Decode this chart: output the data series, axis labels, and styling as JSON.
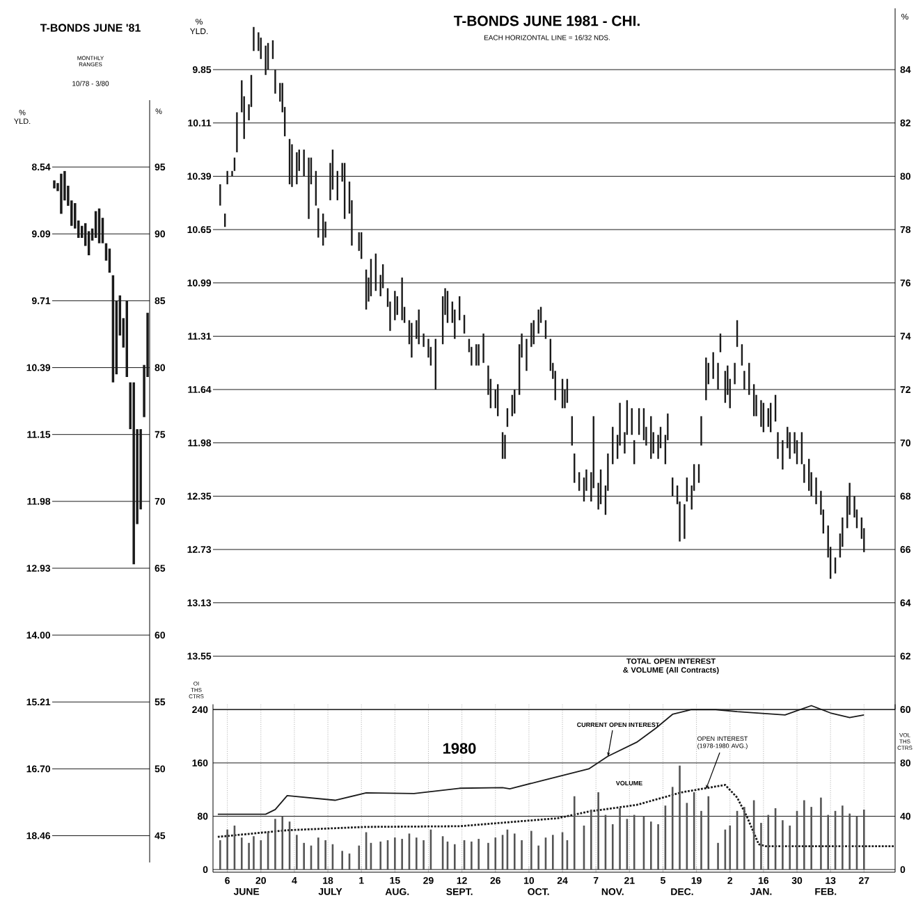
{
  "chart_data": [
    {
      "type": "bar",
      "title": "T-BONDS JUNE '81",
      "subtitle": "MONTHLY RANGES",
      "annotations": [
        "10/78 - 3/80",
        "% YLD.",
        "8.54",
        "9.09",
        "9.71",
        "10.39",
        "11.15",
        "11.98",
        "12.93",
        "14.00",
        "15.21",
        "16.70",
        "18.46"
      ],
      "ylabel": "%",
      "categories": [
        null,
        null,
        null,
        null,
        null,
        null,
        null,
        null,
        null,
        null,
        null,
        null,
        null,
        null,
        null,
        null,
        null,
        null,
        null,
        null,
        null,
        null,
        null,
        null,
        null,
        null,
        null,
        null
      ],
      "base": [
        93.4,
        93.2,
        91.5,
        92.5,
        92.1,
        90.6,
        90.4,
        89.7,
        89.7,
        89.1,
        88.4,
        89.5,
        89.7,
        89.3,
        89.3,
        88.0,
        87.1,
        78.9,
        79.5,
        82.4,
        81.5,
        79.3,
        75.4,
        65.3,
        68.3,
        69.4,
        76.3,
        79.3
      ],
      "values": [
        0.6,
        0.6,
        3.0,
        2.2,
        1.5,
        1.9,
        1.9,
        1.3,
        0.9,
        1.7,
        1.8,
        0.9,
        2.0,
        2.6,
        1.9,
        1.3,
        1.8,
        8.0,
        5.5,
        3.0,
        2.2,
        5.7,
        3.5,
        13.6,
        7.1,
        6.0,
        3.9,
        4.8
      ],
      "color": "#1a1a1a",
      "ylim": [
        43,
        100
      ],
      "yticks": [
        95,
        90,
        85,
        80,
        75,
        70,
        65,
        60,
        55,
        50,
        45
      ],
      "grid": "y"
    },
    {
      "type": "bar",
      "title": "T-BONDS JUNE 1981 - CHI.",
      "subtitle": "EACH HORIZONTAL LINE = 16/32 NDS.",
      "annotations": [
        "% YLD.",
        "9.85",
        "10.11",
        "10.39",
        "10.65",
        "10.99",
        "11.31",
        "11.64",
        "11.98",
        "12.35",
        "12.73",
        "13.13",
        "13.55"
      ],
      "ylabel": "%",
      "x": [
        "1980-06-03",
        "1980-06-05",
        "1980-06-06",
        "1980-06-08",
        "1980-06-09",
        "1980-06-10",
        "1980-06-12",
        "1980-06-13",
        "1980-06-15",
        "1980-06-16",
        "1980-06-17",
        "1980-06-19",
        "1980-06-20",
        "1980-06-22",
        "1980-06-23",
        "1980-06-25",
        "1980-06-26",
        "1980-06-28",
        "1980-06-29",
        "1980-06-30",
        "1980-07-02",
        "1980-07-03",
        "1980-07-05",
        "1980-07-06",
        "1980-07-08",
        "1980-07-10",
        "1980-07-11",
        "1980-07-13",
        "1980-07-14",
        "1980-07-16",
        "1980-07-17",
        "1980-07-19",
        "1980-07-20",
        "1980-07-22",
        "1980-07-24",
        "1980-07-25",
        "1980-07-27",
        "1980-07-28",
        "1980-07-31",
        "1980-08-01",
        "1980-08-03",
        "1980-08-04",
        "1980-08-05",
        "1980-08-07",
        "1980-08-09",
        "1980-08-10",
        "1980-08-12",
        "1980-08-13",
        "1980-08-15",
        "1980-08-16",
        "1980-08-18",
        "1980-08-19",
        "1980-08-21",
        "1980-08-22",
        "1980-08-24",
        "1980-08-25",
        "1980-08-27",
        "1980-08-29",
        "1980-08-30",
        "1980-09-01",
        "1980-09-04",
        "1980-09-05",
        "1980-09-06",
        "1980-09-08",
        "1980-09-09",
        "1980-09-11",
        "1980-09-13",
        "1980-09-15",
        "1980-09-16",
        "1980-09-18",
        "1980-09-19",
        "1980-09-21",
        "1980-09-23",
        "1980-09-24",
        "1980-09-26",
        "1980-09-27",
        "1980-09-29",
        "1980-09-30",
        "1980-10-01",
        "1980-10-03",
        "1980-10-04",
        "1980-10-06",
        "1980-10-07",
        "1980-10-09",
        "1980-10-11",
        "1980-10-12",
        "1980-10-14",
        "1980-10-15",
        "1980-10-17",
        "1980-10-19",
        "1980-10-20",
        "1980-10-21",
        "1980-10-24",
        "1980-10-25",
        "1980-10-26",
        "1980-10-28",
        "1980-10-29",
        "1980-10-31",
        "1980-11-02",
        "1980-11-03",
        "1980-11-05",
        "1980-11-06",
        "1980-11-08",
        "1980-11-09",
        "1980-11-11",
        "1980-11-12",
        "1980-11-14",
        "1980-11-16",
        "1980-11-17",
        "1980-11-19",
        "1980-11-20",
        "1980-11-22",
        "1980-11-23",
        "1980-11-25",
        "1980-11-27",
        "1980-11-28",
        "1980-11-30",
        "1980-12-01",
        "1980-12-03",
        "1980-12-04",
        "1980-12-06",
        "1980-12-07",
        "1980-12-09",
        "1980-12-11",
        "1980-12-12",
        "1980-12-14",
        "1980-12-15",
        "1980-12-17",
        "1980-12-18",
        "1980-12-20",
        "1980-12-21",
        "1980-12-23",
        "1980-12-24",
        "1980-12-26",
        "1980-12-28",
        "1980-12-29",
        "1980-12-31",
        "1981-01-01",
        "1981-01-02",
        "1981-01-04",
        "1981-01-05",
        "1981-01-07",
        "1981-01-08",
        "1981-01-10",
        "1981-01-12",
        "1981-01-13",
        "1981-01-15",
        "1981-01-16",
        "1981-01-18",
        "1981-01-19",
        "1981-01-21",
        "1981-01-22",
        "1981-01-24",
        "1981-01-26",
        "1981-01-27",
        "1981-01-29",
        "1981-01-30",
        "1981-02-01",
        "1981-02-02",
        "1981-02-04",
        "1981-02-05",
        "1981-02-07",
        "1981-02-09",
        "1981-02-10",
        "1981-02-12",
        "1981-02-13",
        "1981-02-15",
        "1981-02-17",
        "1981-02-18",
        "1981-02-20",
        "1981-02-21",
        "1981-02-23",
        "1981-02-24",
        "1981-02-26",
        "1981-02-27"
      ],
      "base": [
        78.9,
        78.1,
        79.7,
        80.0,
        80.2,
        80.9,
        82.4,
        81.4,
        82.1,
        82.6,
        84.7,
        84.7,
        84.4,
        83.8,
        84.0,
        84.4,
        83.1,
        82.8,
        82.4,
        81.5,
        79.7,
        79.6,
        79.7,
        80.2,
        80.0,
        78.4,
        79.7,
        78.9,
        77.7,
        77.4,
        77.7,
        79.1,
        79.5,
        79.1,
        79.8,
        78.4,
        78.6,
        77.4,
        77.2,
        76.9,
        75.0,
        75.3,
        75.5,
        75.7,
        75.5,
        75.8,
        75.1,
        74.2,
        74.6,
        74.8,
        74.6,
        74.5,
        73.7,
        73.2,
        73.9,
        73.7,
        73.6,
        73.2,
        72.9,
        72.0,
        73.7,
        74.8,
        74.5,
        74.5,
        73.9,
        74.6,
        74.1,
        73.4,
        72.9,
        72.9,
        72.9,
        73.0,
        71.8,
        71.3,
        71.3,
        71.0,
        69.4,
        69.4,
        70.6,
        71.0,
        71.1,
        71.8,
        73.2,
        72.7,
        73.6,
        73.7,
        74.1,
        74.5,
        73.9,
        72.7,
        72.4,
        71.6,
        71.3,
        71.3,
        71.5,
        69.9,
        68.5,
        68.2,
        67.8,
        68.2,
        67.8,
        68.3,
        67.5,
        67.7,
        67.3,
        68.2,
        69.2,
        69.4,
        69.9,
        69.6,
        70.3,
        70.3,
        69.2,
        70.3,
        70.1,
        69.9,
        69.4,
        69.6,
        69.4,
        69.8,
        69.2,
        70.1,
        68.0,
        67.7,
        66.3,
        66.4,
        67.8,
        67.5,
        68.2,
        68.5,
        69.9,
        71.6,
        72.2,
        72.4,
        72.0,
        73.4,
        71.5,
        71.8,
        71.3,
        72.2,
        73.6,
        72.9,
        72.0,
        71.8,
        71.0,
        71.0,
        70.6,
        70.4,
        70.6,
        70.4,
        70.8,
        69.4,
        69.0,
        69.8,
        69.4,
        69.6,
        69.2,
        69.2,
        68.5,
        68.2,
        68.0,
        67.7,
        67.3,
        66.6,
        65.7,
        64.9,
        65.1,
        65.7,
        66.1,
        66.8,
        67.3,
        67.2,
        66.8,
        66.4,
        65.9
      ],
      "values": [
        0.8,
        0.5,
        0.5,
        0.2,
        0.5,
        1.5,
        1.2,
        1.6,
        0.6,
        1.2,
        0.9,
        0.7,
        0.8,
        1.1,
        1.0,
        0.7,
        0.9,
        0.7,
        1.1,
        1.1,
        1.7,
        1.6,
        1.2,
        0.8,
        1.0,
        2.3,
        1.0,
        1.3,
        1.1,
        1.2,
        0.6,
        1.4,
        1.5,
        1.1,
        0.7,
        2.1,
        1.2,
        1.7,
        0.7,
        1.0,
        1.5,
        0.9,
        1.4,
        1.4,
        0.8,
        0.9,
        0.7,
        1.1,
        1.1,
        0.7,
        1.6,
        0.6,
        0.9,
        1.3,
        0.7,
        1.3,
        0.5,
        0.7,
        0.7,
        1.9,
        1.8,
        1.0,
        1.2,
        0.8,
        1.1,
        0.9,
        0.7,
        0.5,
        0.7,
        0.8,
        0.8,
        1.1,
        1.1,
        1.1,
        0.7,
        1.2,
        1.0,
        0.9,
        0.7,
        0.8,
        0.9,
        1.9,
        0.9,
        1.2,
        0.9,
        0.9,
        0.9,
        0.6,
        0.7,
        1.2,
        0.6,
        1.1,
        1.1,
        0.7,
        0.9,
        1.1,
        1.1,
        0.7,
        0.9,
        0.8,
        1.1,
        2.7,
        1.0,
        1.3,
        1.1,
        1.4,
        1.4,
        0.9,
        1.6,
        0.8,
        1.3,
        1.0,
        0.9,
        1.0,
        1.2,
        0.7,
        1.6,
        0.8,
        0.9,
        0.8,
        1.1,
        1.0,
        0.7,
        0.7,
        1.5,
        1.3,
        0.9,
        0.9,
        1.0,
        0.7,
        1.1,
        1.6,
        0.8,
        1.0,
        1.0,
        0.7,
        1.2,
        1.1,
        1.1,
        0.8,
        1.0,
        0.8,
        0.7,
        1.2,
        1.2,
        0.8,
        1.0,
        1.1,
        0.7,
        1.1,
        1.0,
        1.0,
        1.1,
        0.8,
        1.0,
        0.8,
        0.9,
        1.2,
        0.7,
        1.2,
        0.9,
        1.0,
        0.9,
        0.9,
        1.2,
        1.2,
        0.6,
        0.9,
        1.1,
        1.2,
        1.2,
        0.8,
        0.7,
        0.8,
        0.9
      ],
      "color": "#1a1a1a",
      "xlim": [
        "1980-05-31",
        "1981-03-12"
      ],
      "xticks": [
        {
          "value": "1980-06-06",
          "label": null
        },
        {
          "value": "1980-06-20",
          "label": null
        },
        {
          "value": "1980-07-04",
          "label": null
        },
        {
          "value": "1980-07-18",
          "label": null
        },
        {
          "value": "1980-08-01",
          "label": null
        },
        {
          "value": "1980-08-15",
          "label": null
        },
        {
          "value": "1980-08-29",
          "label": null
        },
        {
          "value": "1980-09-12",
          "label": null
        },
        {
          "value": "1980-09-26",
          "label": null
        },
        {
          "value": "1980-10-10",
          "label": null
        },
        {
          "value": "1980-10-24",
          "label": null
        },
        {
          "value": "1980-11-07",
          "label": null
        },
        {
          "value": "1980-11-21",
          "label": null
        },
        {
          "value": "1980-12-05",
          "label": null
        },
        {
          "value": "1980-12-19",
          "label": null
        },
        {
          "value": "1981-01-02",
          "label": null
        },
        {
          "value": "1981-01-16",
          "label": null
        },
        {
          "value": "1981-01-30",
          "label": null
        },
        {
          "value": "1981-02-13",
          "label": null
        },
        {
          "value": "1981-02-27",
          "label": null
        }
      ],
      "ylim": [
        60,
        86.3
      ],
      "yticks": [
        84,
        82,
        80,
        78,
        76,
        74,
        72,
        70,
        68,
        66,
        64,
        62,
        60
      ],
      "grid": true,
      "tick_labels": "y"
    },
    {
      "type": "line",
      "title": "TOTAL OPEN INTEREST & VOLUME (All Contracts)",
      "ylabel": "OI THS CTRS",
      "y2label": "VOL THS CTRS",
      "annotations": [
        "1980",
        {
          "text": "CURRENT OPEN INTEREST",
          "x": "1980-11-12",
          "y": 170
        },
        {
          "text": "OPEN INTEREST (1978-1980 AVG.)",
          "x": "1980-12-23",
          "y": 121
        },
        "VOLUME"
      ],
      "xlim": [
        "1980-05-31",
        "1981-03-12"
      ],
      "xticks": [
        {
          "value": "1980-06-06",
          "label": "6"
        },
        {
          "value": "1980-06-20",
          "label": "20"
        },
        {
          "value": "1980-07-04",
          "label": "4"
        },
        {
          "value": "1980-07-18",
          "label": "18"
        },
        {
          "value": "1980-08-01",
          "label": "1"
        },
        {
          "value": "1980-08-15",
          "label": "15"
        },
        {
          "value": "1980-08-29",
          "label": "29"
        },
        {
          "value": "1980-09-12",
          "label": "12"
        },
        {
          "value": "1980-09-26",
          "label": "26"
        },
        {
          "value": "1980-10-10",
          "label": "10"
        },
        {
          "value": "1980-10-24",
          "label": "24"
        },
        {
          "value": "1980-11-07",
          "label": "7"
        },
        {
          "value": "1980-11-21",
          "label": "21"
        },
        {
          "value": "1980-12-05",
          "label": "5"
        },
        {
          "value": "1980-12-19",
          "label": "19"
        },
        {
          "value": "1981-01-02",
          "label": "2"
        },
        {
          "value": "1981-01-16",
          "label": "16"
        },
        {
          "value": "1981-01-30",
          "label": "30"
        },
        {
          "value": "1981-02-13",
          "label": "13"
        },
        {
          "value": "1981-02-27",
          "label": "27"
        }
      ],
      "x2lim": [
        "1980-05-31",
        "1981-03-12"
      ],
      "x2ticks": [
        {
          "value": "1980-06-14",
          "label": "JUNE"
        },
        {
          "value": "1980-07-19",
          "label": "JULY"
        },
        {
          "value": "1980-08-16",
          "label": "AUG."
        },
        {
          "value": "1980-09-11",
          "label": "SEPT."
        },
        {
          "value": "1980-10-14",
          "label": "OCT."
        },
        {
          "value": "1980-11-14",
          "label": "NOV."
        },
        {
          "value": "1980-12-13",
          "label": "DEC."
        },
        {
          "value": "1981-01-15",
          "label": "JAN."
        },
        {
          "value": "1981-02-11",
          "label": "FEB."
        }
      ],
      "ylim": [
        -4,
        248
      ],
      "yticks": [
        0,
        80,
        160,
        240
      ],
      "y2lim": [
        -2,
        124
      ],
      "y2ticks": [
        0,
        40,
        80
      ],
      "grid": true,
      "series": [
        {
          "type": "line",
          "color": "#1a1a1a",
          "line_style": "solid",
          "x": [
            "1980-06-02",
            "1980-06-22",
            "1980-06-26",
            "1980-07-01",
            "1980-07-21",
            "1980-08-03",
            "1980-08-23",
            "1980-09-11",
            "1980-09-29",
            "1980-10-02",
            "1980-10-16",
            "1980-11-04",
            "1980-11-12",
            "1980-11-24",
            "1980-12-02",
            "1980-12-09",
            "1980-12-17",
            "1980-12-27",
            "1981-01-05",
            "1981-01-25",
            "1981-02-05",
            "1981-02-13",
            "1981-02-21",
            "1981-02-27"
          ],
          "values": [
            83,
            83,
            90,
            111,
            104,
            115,
            114,
            122,
            123,
            121,
            134,
            151,
            170,
            191,
            212,
            233,
            240,
            240,
            237,
            232,
            246,
            235,
            228,
            232
          ]
        },
        {
          "type": "line",
          "color": "#1a1a1a",
          "line_style": "dotted",
          "x": [
            "1980-06-02",
            "1980-07-01",
            "1980-08-03",
            "1980-09-11",
            "1980-10-22",
            "1980-11-04",
            "1980-11-24",
            "1980-12-13",
            "1980-12-31",
            "1981-01-05",
            "1981-01-09",
            "1981-01-14",
            "1981-01-17",
            "1981-03-12"
          ],
          "values": [
            49,
            59,
            64,
            65,
            77,
            87,
            97,
            116,
            127,
            108,
            80,
            38,
            35,
            35
          ]
        },
        {
          "type": "bar",
          "axis": "y2",
          "color": "#555555",
          "x": [
            "1980-06-03",
            "1980-06-06",
            "1980-06-09",
            "1980-06-12",
            "1980-06-15",
            "1980-06-17",
            "1980-06-20",
            "1980-06-23",
            "1980-06-26",
            "1980-06-29",
            "1980-07-02",
            "1980-07-05",
            "1980-07-08",
            "1980-07-11",
            "1980-07-14",
            "1980-07-17",
            "1980-07-20",
            "1980-07-24",
            "1980-07-27",
            "1980-07-31",
            "1980-08-03",
            "1980-08-05",
            "1980-08-09",
            "1980-08-12",
            "1980-08-15",
            "1980-08-18",
            "1980-08-21",
            "1980-08-24",
            "1980-08-27",
            "1980-08-30",
            "1980-09-04",
            "1980-09-06",
            "1980-09-09",
            "1980-09-13",
            "1980-09-16",
            "1980-09-19",
            "1980-09-23",
            "1980-09-26",
            "1980-09-29",
            "1980-10-01",
            "1980-10-04",
            "1980-10-07",
            "1980-10-11",
            "1980-10-14",
            "1980-10-17",
            "1980-10-20",
            "1980-10-24",
            "1980-10-26",
            "1980-10-29",
            "1980-11-02",
            "1980-11-05",
            "1980-11-08",
            "1980-11-11",
            "1980-11-14",
            "1980-11-17",
            "1980-11-20",
            "1980-11-23",
            "1980-11-27",
            "1980-11-30",
            "1980-12-03",
            "1980-12-06",
            "1980-12-09",
            "1980-12-12",
            "1980-12-15",
            "1980-12-18",
            "1980-12-21",
            "1980-12-24",
            "1980-12-28",
            "1980-12-31",
            "1981-01-02",
            "1981-01-05",
            "1981-01-08",
            "1981-01-12",
            "1981-01-15",
            "1981-01-18",
            "1981-01-21",
            "1981-01-24",
            "1981-01-27",
            "1981-01-30",
            "1981-02-02",
            "1981-02-05",
            "1981-02-09",
            "1981-02-12",
            "1981-02-15",
            "1981-02-18",
            "1981-02-21",
            "1981-02-24",
            "1981-02-27"
          ],
          "values": [
            22,
            30,
            33,
            24,
            20,
            25,
            22,
            28,
            38,
            40,
            36,
            26,
            20,
            18,
            24,
            22,
            19,
            14,
            12,
            18,
            28,
            20,
            21,
            22,
            24,
            23,
            27,
            24,
            22,
            30,
            25,
            21,
            19,
            22,
            21,
            23,
            20,
            24,
            26,
            30,
            27,
            22,
            29,
            18,
            24,
            26,
            28,
            22,
            55,
            33,
            45,
            58,
            41,
            34,
            46,
            38,
            41,
            40,
            36,
            34,
            48,
            62,
            78,
            50,
            58,
            44,
            55,
            20,
            30,
            33,
            44,
            47,
            52,
            35,
            41,
            46,
            37,
            33,
            44,
            52,
            47,
            54,
            41,
            44,
            48,
            42,
            40,
            45
          ]
        }
      ]
    }
  ]
}
